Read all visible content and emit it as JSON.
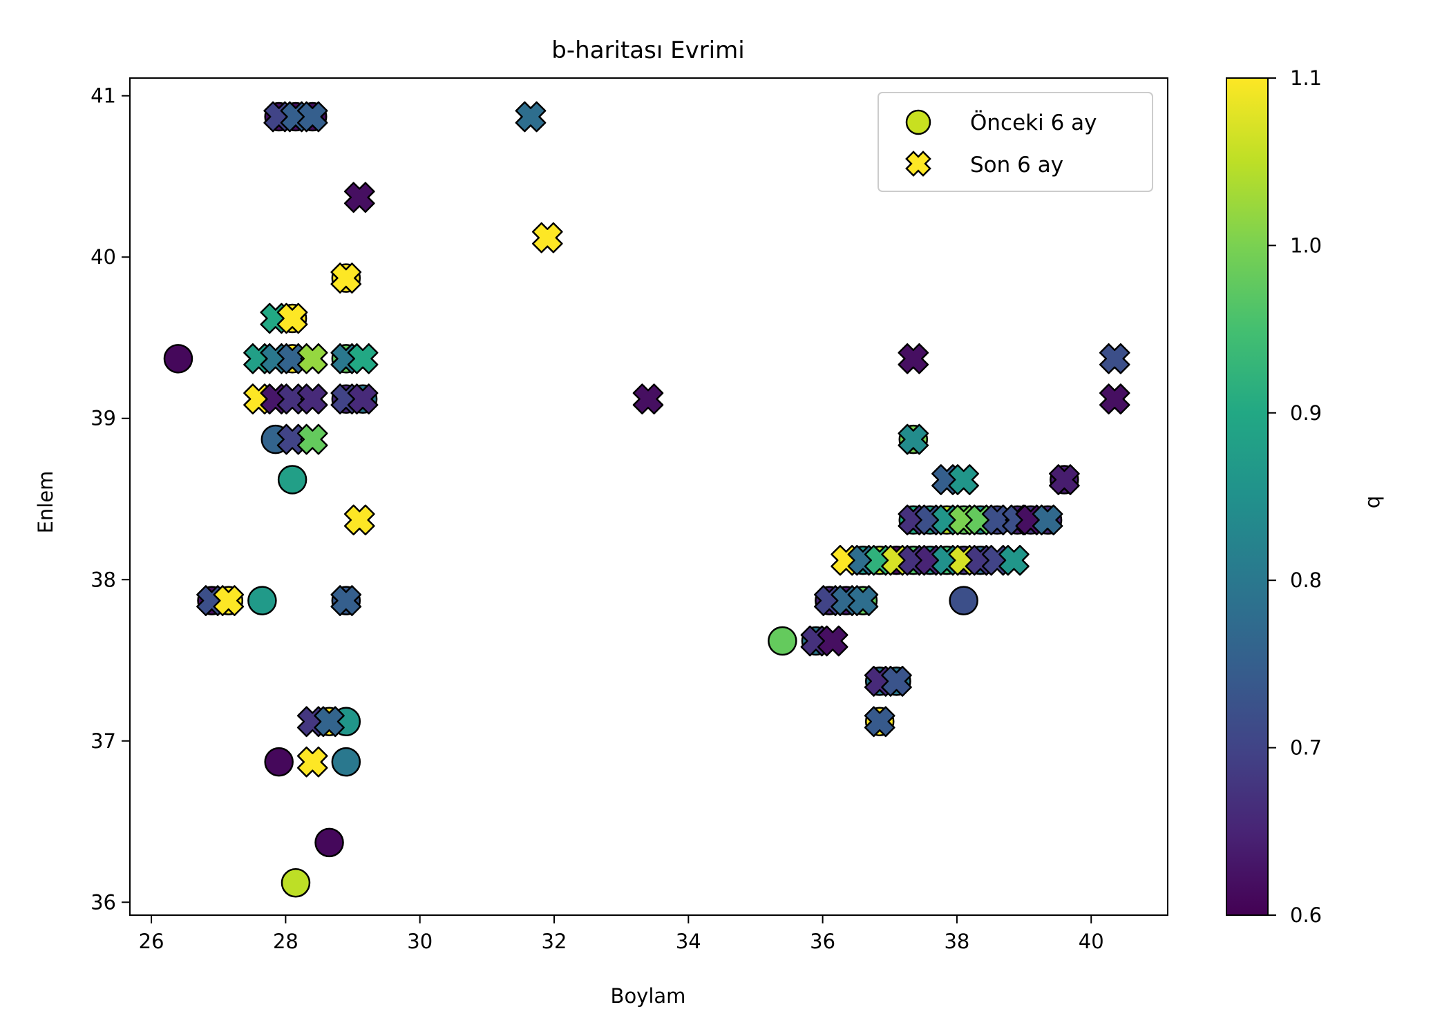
{
  "chart_data": {
    "type": "scatter",
    "title": "b-haritası Evrimi",
    "xlabel": "Boylam",
    "ylabel": "Enlem",
    "xlim": [
      25.68,
      41.14
    ],
    "ylim": [
      35.92,
      41.11
    ],
    "xticks": [
      26,
      28,
      30,
      32,
      34,
      36,
      38,
      40
    ],
    "yticks": [
      36,
      37,
      38,
      39,
      40,
      41
    ],
    "grid": false,
    "legend_position": "top-right",
    "colorbar": {
      "label": "b",
      "colormap": "viridis",
      "range": [
        0.6,
        1.1
      ],
      "ticks": [
        "0.6",
        "0.7",
        "0.8",
        "0.9",
        "1.0",
        "1.1"
      ]
    },
    "series": [
      {
        "name": "Önceki 6 ay",
        "marker": "circle",
        "legend_color": "#c8e020",
        "points": [
          [
            27.9,
            40.87,
            0.62
          ],
          [
            28.15,
            40.87,
            0.62
          ],
          [
            28.4,
            40.87,
            0.62
          ],
          [
            28.9,
            39.87,
            1.1
          ],
          [
            28.1,
            39.62,
            1.1
          ],
          [
            26.4,
            39.37,
            0.61
          ],
          [
            28.1,
            39.37,
            1.1
          ],
          [
            28.9,
            39.37,
            0.98
          ],
          [
            28.9,
            39.12,
            0.66
          ],
          [
            29.15,
            39.12,
            0.8
          ],
          [
            27.85,
            38.87,
            0.76
          ],
          [
            28.1,
            38.62,
            0.88
          ],
          [
            26.9,
            37.87,
            0.62
          ],
          [
            27.15,
            37.87,
            1.1
          ],
          [
            27.65,
            37.87,
            0.87
          ],
          [
            28.9,
            37.87,
            0.74
          ],
          [
            28.65,
            37.12,
            1.1
          ],
          [
            28.9,
            37.12,
            0.86
          ],
          [
            27.9,
            36.87,
            0.61
          ],
          [
            28.9,
            36.87,
            0.8
          ],
          [
            28.65,
            36.37,
            0.61
          ],
          [
            28.15,
            36.12,
            1.05
          ],
          [
            37.35,
            38.87,
            1.0
          ],
          [
            39.6,
            38.62,
            0.64
          ],
          [
            37.35,
            38.37,
            0.9
          ],
          [
            37.6,
            38.37,
            0.88
          ],
          [
            37.85,
            38.37,
            1.05
          ],
          [
            38.1,
            38.37,
            0.98
          ],
          [
            38.35,
            38.37,
            0.85
          ],
          [
            38.6,
            38.37,
            0.7
          ],
          [
            38.9,
            38.37,
            0.65
          ],
          [
            39.1,
            38.37,
            0.68
          ],
          [
            39.35,
            38.37,
            0.66
          ],
          [
            36.6,
            38.12,
            0.86
          ],
          [
            36.85,
            38.12,
            1.05
          ],
          [
            37.1,
            38.12,
            0.62
          ],
          [
            37.35,
            38.12,
            0.96
          ],
          [
            37.6,
            38.12,
            0.86
          ],
          [
            37.85,
            38.12,
            0.95
          ],
          [
            38.1,
            38.12,
            0.68
          ],
          [
            38.35,
            38.12,
            0.78
          ],
          [
            36.1,
            37.87,
            0.65
          ],
          [
            36.35,
            37.87,
            0.64
          ],
          [
            36.6,
            37.87,
            0.98
          ],
          [
            38.1,
            37.87,
            0.72
          ],
          [
            35.4,
            37.62,
            0.98
          ],
          [
            35.9,
            37.62,
            0.8
          ],
          [
            36.85,
            37.37,
            0.8
          ],
          [
            37.1,
            37.37,
            0.8
          ],
          [
            36.85,
            37.12,
            1.1
          ]
        ]
      },
      {
        "name": "Son 6 ay",
        "marker": "x",
        "legend_color": "#fde725",
        "points": [
          [
            27.9,
            40.87,
            0.7
          ],
          [
            28.15,
            40.87,
            0.75
          ],
          [
            28.4,
            40.87,
            0.75
          ],
          [
            31.65,
            40.87,
            0.78
          ],
          [
            29.1,
            40.37,
            0.62
          ],
          [
            31.9,
            40.12,
            1.1
          ],
          [
            28.9,
            39.87,
            1.1
          ],
          [
            27.85,
            39.62,
            0.9
          ],
          [
            28.1,
            39.62,
            1.1
          ],
          [
            27.6,
            39.37,
            0.88
          ],
          [
            27.85,
            39.37,
            0.8
          ],
          [
            28.1,
            39.37,
            0.76
          ],
          [
            28.4,
            39.37,
            1.02
          ],
          [
            28.9,
            39.37,
            0.8
          ],
          [
            29.15,
            39.37,
            0.9
          ],
          [
            27.6,
            39.12,
            1.1
          ],
          [
            27.85,
            39.12,
            0.63
          ],
          [
            28.1,
            39.12,
            0.67
          ],
          [
            28.4,
            39.12,
            0.66
          ],
          [
            28.9,
            39.12,
            0.7
          ],
          [
            29.15,
            39.12,
            0.66
          ],
          [
            28.1,
            38.87,
            0.7
          ],
          [
            28.4,
            38.87,
            0.98
          ],
          [
            29.1,
            38.37,
            1.1
          ],
          [
            26.9,
            37.87,
            0.72
          ],
          [
            27.15,
            37.87,
            1.1
          ],
          [
            28.9,
            37.87,
            0.75
          ],
          [
            28.4,
            37.12,
            0.68
          ],
          [
            28.65,
            37.12,
            0.76
          ],
          [
            28.4,
            36.87,
            1.1
          ],
          [
            33.4,
            39.12,
            0.62
          ],
          [
            37.35,
            39.37,
            0.62
          ],
          [
            40.35,
            39.37,
            0.72
          ],
          [
            40.35,
            39.12,
            0.62
          ],
          [
            37.35,
            38.87,
            0.84
          ],
          [
            37.85,
            38.62,
            0.75
          ],
          [
            38.1,
            38.62,
            0.86
          ],
          [
            39.6,
            38.62,
            0.64
          ],
          [
            37.35,
            38.37,
            0.67
          ],
          [
            37.6,
            38.37,
            0.72
          ],
          [
            37.85,
            38.37,
            0.86
          ],
          [
            38.1,
            38.37,
            1.0
          ],
          [
            38.35,
            38.37,
            0.98
          ],
          [
            38.6,
            38.37,
            0.72
          ],
          [
            38.9,
            38.37,
            0.72
          ],
          [
            39.1,
            38.37,
            0.62
          ],
          [
            39.35,
            38.37,
            0.77
          ],
          [
            36.35,
            38.12,
            1.1
          ],
          [
            36.6,
            38.12,
            0.78
          ],
          [
            36.85,
            38.12,
            0.92
          ],
          [
            37.1,
            38.12,
            1.07
          ],
          [
            37.35,
            38.12,
            0.67
          ],
          [
            37.6,
            38.12,
            0.65
          ],
          [
            37.85,
            38.12,
            0.85
          ],
          [
            38.1,
            38.12,
            1.07
          ],
          [
            38.35,
            38.12,
            0.68
          ],
          [
            38.6,
            38.12,
            0.7
          ],
          [
            38.85,
            38.12,
            0.86
          ],
          [
            36.1,
            37.87,
            0.7
          ],
          [
            36.35,
            37.87,
            0.77
          ],
          [
            36.6,
            37.87,
            0.78
          ],
          [
            35.9,
            37.62,
            0.67
          ],
          [
            36.15,
            37.62,
            0.62
          ],
          [
            36.85,
            37.37,
            0.66
          ],
          [
            37.1,
            37.37,
            0.73
          ],
          [
            36.85,
            37.12,
            0.74
          ]
        ]
      }
    ]
  }
}
